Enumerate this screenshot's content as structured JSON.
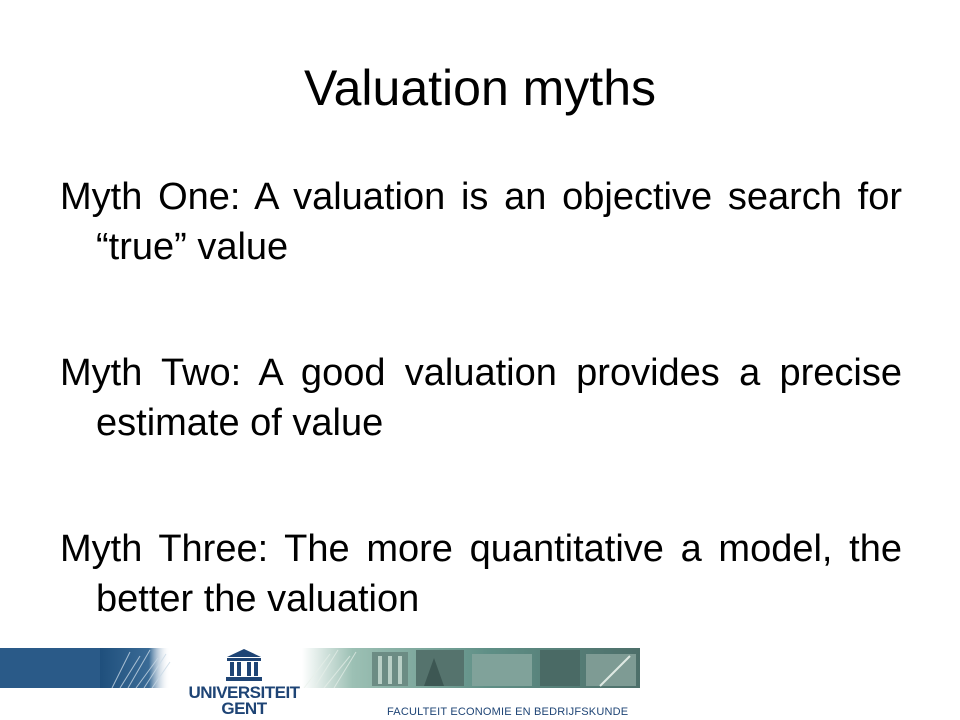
{
  "slide": {
    "title": "Valuation myths",
    "myths": [
      "Myth One: A valuation is an objective search for “true” value",
      "Myth Two: A good valuation provides a precise estimate of value",
      "Myth Three: The more quantitative a model, the better the valuation"
    ]
  },
  "footer": {
    "university_lines": [
      "UNIVERSITEIT",
      "GENT"
    ],
    "faculty": "FACULTEIT ECONOMIE EN BEDRIJFSKUNDE",
    "logo_icon": "university-building-icon",
    "colors": {
      "brand_blue": "#1e4475",
      "band_blue": "#2f5d8a",
      "band_green": "#7fa8a0"
    }
  }
}
